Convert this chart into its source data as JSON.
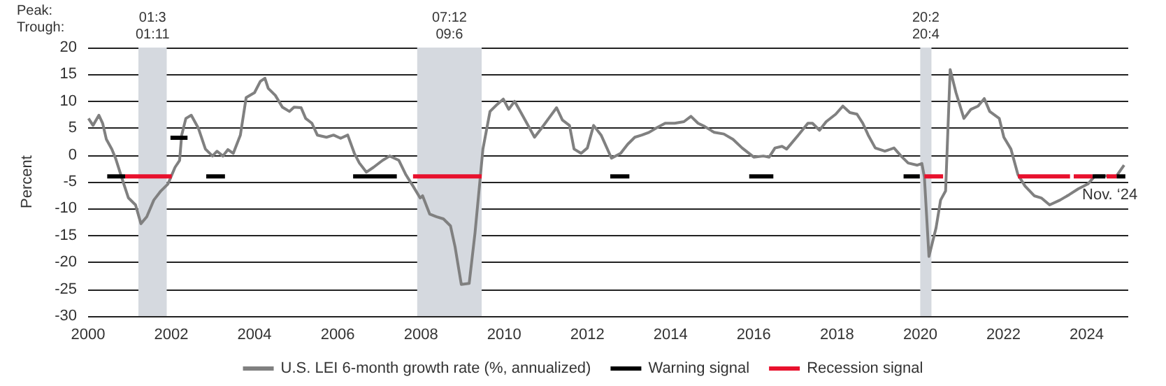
{
  "chart_data": {
    "type": "line",
    "ylabel": "Percent",
    "xlim": [
      2000,
      2025
    ],
    "xticks": [
      2000,
      2002,
      2004,
      2006,
      2008,
      2010,
      2012,
      2014,
      2016,
      2018,
      2020,
      2022,
      2024
    ],
    "ylim": [
      -30,
      20
    ],
    "yticks": [
      -30,
      -25,
      -20,
      -15,
      -10,
      -5,
      0,
      5,
      10,
      15,
      20
    ],
    "grid": "y",
    "legend": "bottom",
    "marker": "none",
    "line_style": "solid",
    "annotations": [
      "Peak:\nTrough:",
      {
        "text": "Nov. ‘24",
        "x": 2024.9,
        "y": -1.9
      }
    ],
    "bands": [
      {
        "axis": "x",
        "from": 2001.21,
        "to": 2001.89,
        "label": "01:3\n01:11",
        "color": "#d5d9df"
      },
      {
        "axis": "x",
        "from": 2007.91,
        "to": 2009.46,
        "label": "07:12\n09:6",
        "color": "#d5d9df"
      },
      {
        "axis": "x",
        "from": 2020.0,
        "to": 2020.27,
        "label": "20:2\n20:4",
        "color": "#d5d9df"
      }
    ],
    "series": [
      {
        "name": "U.S. LEI 6-month growth rate (%, annualized)",
        "color": "#808080",
        "x": [
          2000.01,
          2000.12,
          2000.26,
          2000.35,
          2000.44,
          2000.57,
          2000.66,
          2000.82,
          2000.97,
          2001.14,
          2001.27,
          2001.41,
          2001.58,
          2001.75,
          2001.92,
          2002.09,
          2002.2,
          2002.25,
          2002.35,
          2002.48,
          2002.65,
          2002.82,
          2002.99,
          2003.1,
          2003.24,
          2003.36,
          2003.49,
          2003.66,
          2003.8,
          2004.0,
          2004.14,
          2004.25,
          2004.33,
          2004.5,
          2004.67,
          2004.84,
          2004.95,
          2005.12,
          2005.23,
          2005.38,
          2005.51,
          2005.73,
          2005.9,
          2006.07,
          2006.24,
          2006.4,
          2006.52,
          2006.69,
          2006.86,
          2007.08,
          2007.25,
          2007.47,
          2007.64,
          2007.81,
          2007.98,
          2008.04,
          2008.21,
          2008.37,
          2008.54,
          2008.71,
          2008.82,
          2008.97,
          2009.16,
          2009.3,
          2009.49,
          2009.66,
          2009.83,
          2009.98,
          2010.11,
          2010.25,
          2010.39,
          2010.56,
          2010.73,
          2010.9,
          2011.07,
          2011.26,
          2011.4,
          2011.57,
          2011.68,
          2011.85,
          2012.0,
          2012.15,
          2012.33,
          2012.58,
          2012.8,
          2012.97,
          2013.14,
          2013.31,
          2013.48,
          2013.65,
          2013.87,
          2014.1,
          2014.32,
          2014.49,
          2014.66,
          2014.82,
          2015.05,
          2015.28,
          2015.5,
          2015.72,
          2016.0,
          2016.23,
          2016.37,
          2016.51,
          2016.68,
          2016.79,
          2017.07,
          2017.3,
          2017.41,
          2017.58,
          2017.74,
          2017.97,
          2018.14,
          2018.31,
          2018.48,
          2018.62,
          2018.75,
          2018.92,
          2019.15,
          2019.37,
          2019.54,
          2019.71,
          2019.93,
          2020.04,
          2020.1,
          2020.21,
          2020.38,
          2020.49,
          2020.61,
          2020.72,
          2020.86,
          2021.05,
          2021.22,
          2021.39,
          2021.54,
          2021.67,
          2021.9,
          2022.01,
          2022.18,
          2022.35,
          2022.52,
          2022.74,
          2022.91,
          2023.11,
          2023.36,
          2023.58,
          2023.8,
          2024.03,
          2024.2,
          2024.48,
          2024.7,
          2024.9
        ],
        "values": [
          6.8,
          5.5,
          7.4,
          5.9,
          2.9,
          1.1,
          -0.6,
          -4.5,
          -8,
          -9.3,
          -12.8,
          -11.5,
          -8.4,
          -6.7,
          -5.4,
          -2.3,
          -1,
          3.7,
          6.8,
          7.4,
          5,
          1.1,
          -0.2,
          0.7,
          -0.2,
          1,
          0.3,
          3.7,
          10.7,
          11.6,
          13.7,
          14.3,
          12.4,
          11.1,
          8.9,
          8.1,
          8.9,
          8.8,
          6.8,
          5.9,
          3.7,
          3.3,
          3.7,
          3.1,
          3.7,
          0.3,
          -1.5,
          -3.2,
          -2.3,
          -1,
          -0.2,
          -1,
          -3.7,
          -5.8,
          -8,
          -7.6,
          -11,
          -11.5,
          -11.9,
          -13.2,
          -17.1,
          -24.1,
          -23.9,
          -14.5,
          1.1,
          8.1,
          9.4,
          10.4,
          8.5,
          10,
          8.1,
          5.7,
          3.3,
          5,
          6.8,
          8.8,
          6.5,
          5.5,
          1.1,
          0.3,
          1.3,
          5.5,
          3.7,
          -0.6,
          0.3,
          2,
          3.3,
          3.7,
          4.2,
          5,
          5.9,
          5.9,
          6.2,
          7.2,
          5.9,
          5.3,
          4.2,
          3.9,
          2.9,
          1.3,
          -0.4,
          -0.2,
          -0.4,
          1.3,
          1.6,
          1.1,
          3.7,
          5.9,
          5.9,
          4.6,
          6.2,
          7.6,
          9.1,
          7.9,
          7.6,
          5.9,
          3.7,
          1.3,
          0.7,
          1.3,
          -0.2,
          -1.5,
          -1.9,
          -1.6,
          -4.1,
          -18.9,
          -13.6,
          -8.4,
          -6.7,
          15.9,
          11.6,
          6.8,
          8.5,
          9.1,
          10.5,
          8.1,
          6.8,
          3.3,
          1.1,
          -3.7,
          -5.8,
          -7.6,
          -8,
          -9.3,
          -8.4,
          -7.4,
          -6.3,
          -5.4,
          -3.9,
          -3.9,
          -4.1,
          -1.9
        ]
      },
      {
        "name": "Warning signal",
        "color": "#000000",
        "x": [
          2000.46,
          2000.89,
          2000.9,
          2001.98,
          2002.39,
          2002.4,
          2002.84,
          2003.29,
          2003.3,
          2006.37,
          2007.42,
          2007.43,
          2012.55,
          2013.01,
          2013.02,
          2015.89,
          2016.47,
          2016.48,
          2019.6,
          2019.99,
          2020.0,
          2024.14,
          2024.45,
          2024.46,
          2024.72,
          2024.93
        ],
        "values": [
          -4,
          -4,
          null,
          3.2,
          3.2,
          null,
          -4,
          -4,
          null,
          -4,
          -4,
          null,
          -4,
          -4,
          null,
          -4,
          -4,
          null,
          -4,
          -4,
          null,
          -4,
          -4,
          null,
          -4,
          -4
        ]
      },
      {
        "name": "Recession signal",
        "color": "#e8112d",
        "x": [
          2000.89,
          2002.01,
          2002.02,
          2007.81,
          2009.46,
          2009.47,
          2020.1,
          2020.55,
          2020.56,
          2022.35,
          2023.6,
          2023.61,
          2023.69,
          2024.14,
          2024.15,
          2024.48,
          2024.72
        ],
        "values": [
          -4,
          -4,
          null,
          -4,
          -4,
          null,
          -4,
          -4,
          null,
          -4,
          -4,
          null,
          -4,
          -4,
          null,
          -4,
          -4
        ]
      }
    ]
  }
}
